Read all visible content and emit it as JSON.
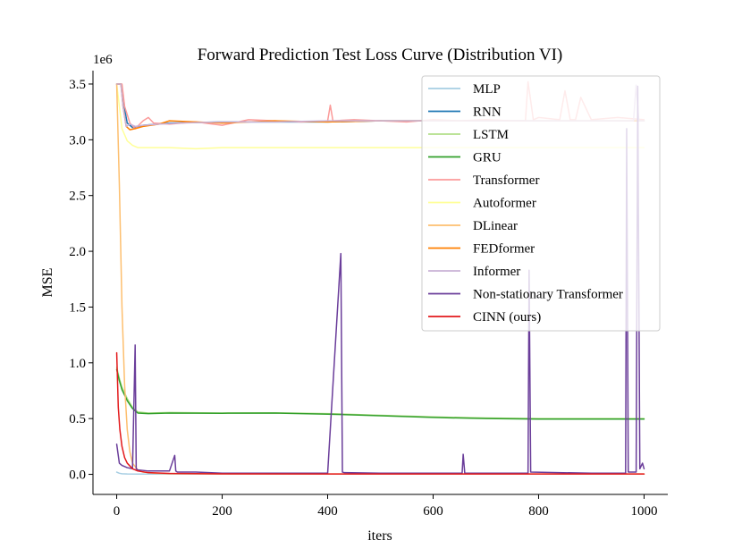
{
  "chart_data": {
    "type": "line",
    "title": "Forward Prediction Test Loss Curve (Distribution VI)",
    "xlabel": "iters",
    "ylabel": "MSE",
    "offset_text": "1e6",
    "xlim": [
      -45,
      1045
    ],
    "ylim": [
      -0.18,
      3.62
    ],
    "x_ticks": [
      0,
      200,
      400,
      600,
      800,
      1000
    ],
    "x_tick_labels": [
      "0",
      "200",
      "400",
      "600",
      "800",
      "1000"
    ],
    "y_ticks": [
      0.0,
      0.5,
      1.0,
      1.5,
      2.0,
      2.5,
      3.0,
      3.5
    ],
    "y_tick_labels": [
      "0.0",
      "0.5",
      "1.0",
      "1.5",
      "2.0",
      "2.5",
      "3.0",
      "3.5"
    ],
    "legend_position": "upper right",
    "series": [
      {
        "name": "MLP",
        "color": "#a6cee3",
        "x": [
          0,
          5,
          10,
          20,
          40,
          80,
          200,
          400,
          600,
          800,
          1000
        ],
        "y": [
          0.02,
          0.01,
          0.005,
          0.003,
          0.002,
          0.002,
          0.002,
          0.002,
          0.002,
          0.002,
          0.002
        ]
      },
      {
        "name": "RNN",
        "color": "#1f78b4",
        "x": [
          0,
          8,
          14,
          20,
          30,
          50,
          100,
          200,
          300,
          400,
          500,
          600,
          700,
          800,
          900,
          1000
        ],
        "y": [
          3.5,
          3.5,
          3.3,
          3.15,
          3.11,
          3.13,
          3.15,
          3.16,
          3.16,
          3.16,
          3.17,
          3.17,
          3.17,
          3.17,
          3.17,
          3.17
        ]
      },
      {
        "name": "LSTM",
        "color": "#b2df8a",
        "x": [
          0,
          5,
          10,
          20,
          30,
          40,
          60,
          100,
          200,
          300,
          400,
          500,
          600,
          700,
          800,
          900,
          1000
        ],
        "y": [
          0.96,
          0.86,
          0.78,
          0.68,
          0.6,
          0.56,
          0.55,
          0.555,
          0.55,
          0.552,
          0.545,
          0.53,
          0.515,
          0.505,
          0.5,
          0.5,
          0.5
        ]
      },
      {
        "name": "GRU",
        "color": "#33a02c",
        "x": [
          0,
          5,
          10,
          20,
          30,
          40,
          60,
          100,
          200,
          300,
          400,
          500,
          600,
          700,
          800,
          900,
          1000
        ],
        "y": [
          0.94,
          0.84,
          0.76,
          0.66,
          0.59,
          0.55,
          0.545,
          0.55,
          0.548,
          0.55,
          0.54,
          0.525,
          0.51,
          0.5,
          0.495,
          0.495,
          0.495
        ]
      },
      {
        "name": "Transformer",
        "color": "#fb9a99",
        "x": [
          0,
          10,
          15,
          25,
          35,
          50,
          60,
          70,
          100,
          150,
          200,
          250,
          300,
          350,
          400,
          405,
          410,
          450,
          500,
          550,
          600,
          650,
          700,
          750,
          775,
          780,
          790,
          800,
          840,
          850,
          860,
          870,
          880,
          900,
          950,
          1000
        ],
        "y": [
          3.5,
          3.5,
          3.3,
          3.15,
          3.1,
          3.17,
          3.2,
          3.15,
          3.14,
          3.16,
          3.13,
          3.18,
          3.17,
          3.16,
          3.17,
          3.31,
          3.17,
          3.18,
          3.17,
          3.16,
          3.18,
          3.17,
          3.18,
          3.17,
          3.17,
          3.52,
          3.18,
          3.2,
          3.18,
          3.44,
          3.18,
          3.18,
          3.38,
          3.18,
          3.2,
          3.18
        ]
      },
      {
        "name": "Autoformer",
        "color": "#ffff99",
        "x": [
          0,
          5,
          10,
          20,
          30,
          40,
          60,
          100,
          150,
          200,
          300,
          400,
          500,
          600,
          700,
          800,
          900,
          1000
        ],
        "y": [
          3.5,
          3.3,
          3.1,
          2.99,
          2.95,
          2.93,
          2.93,
          2.93,
          2.92,
          2.93,
          2.93,
          2.93,
          2.93,
          2.93,
          2.93,
          2.93,
          2.93,
          2.93
        ]
      },
      {
        "name": "DLinear",
        "color": "#fdbf6f",
        "x": [
          0,
          5,
          10,
          15,
          20,
          25,
          30,
          40,
          50,
          70,
          100,
          200,
          400,
          600,
          800,
          1000
        ],
        "y": [
          3.5,
          2.6,
          1.5,
          0.8,
          0.4,
          0.2,
          0.1,
          0.04,
          0.02,
          0.01,
          0.005,
          0.003,
          0.003,
          0.003,
          0.003,
          0.003
        ]
      },
      {
        "name": "FEDformer",
        "color": "#ff7f00",
        "x": [
          0,
          8,
          12,
          18,
          25,
          35,
          50,
          80,
          100,
          150,
          200,
          250,
          300,
          400,
          500,
          600,
          700,
          800,
          900,
          1000
        ],
        "y": [
          3.5,
          3.5,
          3.3,
          3.12,
          3.09,
          3.1,
          3.12,
          3.14,
          3.17,
          3.16,
          3.15,
          3.16,
          3.17,
          3.16,
          3.17,
          3.17,
          3.17,
          3.17,
          3.17,
          3.17
        ]
      },
      {
        "name": "Informer",
        "color": "#cab2d6",
        "x": [
          0,
          8,
          12,
          18,
          25,
          35,
          50,
          80,
          120,
          200,
          300,
          400,
          500,
          600,
          700,
          800,
          900,
          980,
          985,
          990,
          1000
        ],
        "y": [
          3.5,
          3.5,
          3.3,
          3.12,
          3.14,
          3.12,
          3.13,
          3.14,
          3.15,
          3.16,
          3.16,
          3.17,
          3.17,
          3.17,
          3.17,
          3.17,
          3.17,
          3.17,
          3.49,
          3.17,
          3.17
        ]
      },
      {
        "name": "Non-stationary Transformer",
        "color": "#6a3d9a",
        "x": [
          0,
          5,
          10,
          20,
          30,
          35,
          37,
          40,
          60,
          100,
          110,
          112,
          115,
          150,
          200,
          300,
          400,
          425,
          428,
          432,
          500,
          600,
          655,
          657,
          660,
          700,
          780,
          782,
          785,
          900,
          965,
          967,
          970,
          985,
          988,
          992,
          997,
          1000
        ],
        "y": [
          0.27,
          0.1,
          0.08,
          0.06,
          0.05,
          1.16,
          0.05,
          0.04,
          0.03,
          0.03,
          0.17,
          0.03,
          0.02,
          0.02,
          0.01,
          0.01,
          0.01,
          1.98,
          0.02,
          0.015,
          0.01,
          0.01,
          0.01,
          0.18,
          0.01,
          0.01,
          0.01,
          1.83,
          0.02,
          0.01,
          0.01,
          3.1,
          0.02,
          0.02,
          3.48,
          0.05,
          0.1,
          0.05
        ]
      },
      {
        "name": "CINN (ours)",
        "color": "#e31a1c",
        "x": [
          0,
          3,
          6,
          10,
          15,
          20,
          30,
          40,
          60,
          100,
          200,
          400,
          600,
          800,
          1000
        ],
        "y": [
          1.09,
          0.6,
          0.4,
          0.25,
          0.15,
          0.1,
          0.05,
          0.03,
          0.015,
          0.008,
          0.004,
          0.003,
          0.003,
          0.003,
          0.003
        ]
      }
    ]
  }
}
